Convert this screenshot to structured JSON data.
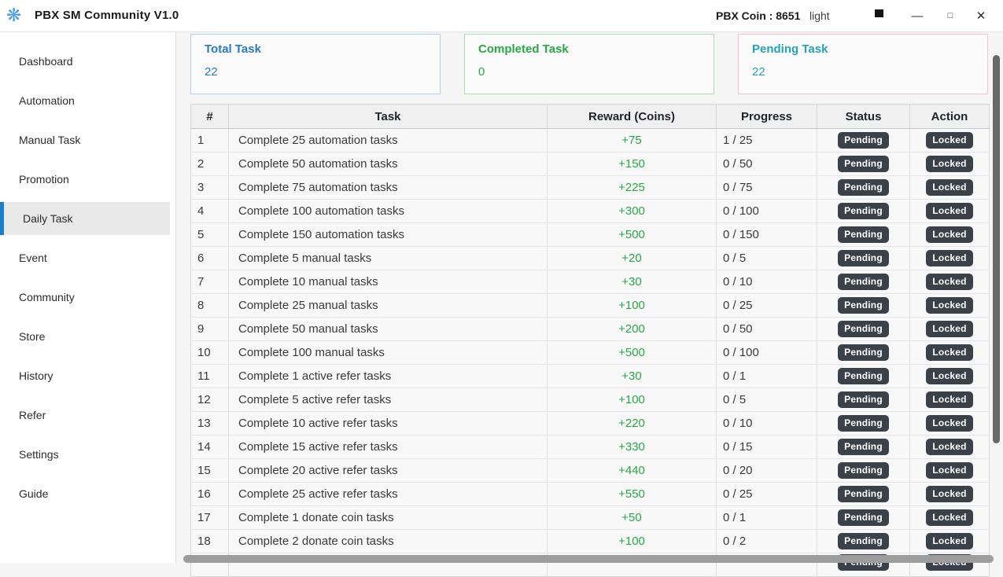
{
  "titlebar": {
    "app_title": "PBX SM Community V1.0",
    "coin_label": "PBX Coin : 8651",
    "theme_label": "light",
    "logo_glyph": "❋",
    "minimize_glyph": "—",
    "maximize_glyph": "□",
    "close_glyph": "✕"
  },
  "sidebar": {
    "items": [
      {
        "label": "Dashboard",
        "active": false
      },
      {
        "label": "Automation",
        "active": false
      },
      {
        "label": "Manual Task",
        "active": false
      },
      {
        "label": "Promotion",
        "active": false
      },
      {
        "label": "Daily Task",
        "active": true
      },
      {
        "label": "Event",
        "active": false
      },
      {
        "label": "Community",
        "active": false
      },
      {
        "label": "Store",
        "active": false
      },
      {
        "label": "History",
        "active": false
      },
      {
        "label": "Refer",
        "active": false
      },
      {
        "label": "Settings",
        "active": false
      },
      {
        "label": "Guide",
        "active": false
      }
    ],
    "active_bar_color": "#1780d0"
  },
  "cards": [
    {
      "title": "Total Task",
      "value": "22",
      "text_color": "#2879c8",
      "border_color": "#b2d0ec"
    },
    {
      "title": "Completed Task",
      "value": "0",
      "text_color": "#28a745",
      "border_color": "#aedcb2"
    },
    {
      "title": "Pending Task",
      "value": "22",
      "text_color": "#22a2b8",
      "border_color": "#f3c3cc"
    }
  ],
  "table": {
    "columns": [
      "#",
      "Task",
      "Reward (Coins)",
      "Progress",
      "Status",
      "Action"
    ],
    "reward_color": "#28a745",
    "badge_bg": "#3a4149",
    "rows": [
      {
        "num": "1",
        "task": "Complete 25 automation tasks",
        "reward": "+75",
        "progress": "1 / 25",
        "status": "Pending",
        "action": "Locked"
      },
      {
        "num": "2",
        "task": "Complete 50 automation tasks",
        "reward": "+150",
        "progress": "0 / 50",
        "status": "Pending",
        "action": "Locked"
      },
      {
        "num": "3",
        "task": "Complete 75 automation tasks",
        "reward": "+225",
        "progress": "0 / 75",
        "status": "Pending",
        "action": "Locked"
      },
      {
        "num": "4",
        "task": "Complete 100 automation tasks",
        "reward": "+300",
        "progress": "0 / 100",
        "status": "Pending",
        "action": "Locked"
      },
      {
        "num": "5",
        "task": "Complete 150 automation tasks",
        "reward": "+500",
        "progress": "0 / 150",
        "status": "Pending",
        "action": "Locked"
      },
      {
        "num": "6",
        "task": "Complete 5 manual tasks",
        "reward": "+20",
        "progress": "0 / 5",
        "status": "Pending",
        "action": "Locked"
      },
      {
        "num": "7",
        "task": "Complete 10 manual tasks",
        "reward": "+30",
        "progress": "0 / 10",
        "status": "Pending",
        "action": "Locked"
      },
      {
        "num": "8",
        "task": "Complete 25 manual tasks",
        "reward": "+100",
        "progress": "0 / 25",
        "status": "Pending",
        "action": "Locked"
      },
      {
        "num": "9",
        "task": "Complete 50 manual tasks",
        "reward": "+200",
        "progress": "0 / 50",
        "status": "Pending",
        "action": "Locked"
      },
      {
        "num": "10",
        "task": "Complete 100 manual tasks",
        "reward": "+500",
        "progress": "0 / 100",
        "status": "Pending",
        "action": "Locked"
      },
      {
        "num": "11",
        "task": "Complete 1 active refer tasks",
        "reward": "+30",
        "progress": "0 / 1",
        "status": "Pending",
        "action": "Locked"
      },
      {
        "num": "12",
        "task": "Complete 5 active refer tasks",
        "reward": "+100",
        "progress": "0 / 5",
        "status": "Pending",
        "action": "Locked"
      },
      {
        "num": "13",
        "task": "Complete 10 active refer tasks",
        "reward": "+220",
        "progress": "0 / 10",
        "status": "Pending",
        "action": "Locked"
      },
      {
        "num": "14",
        "task": "Complete 15 active refer tasks",
        "reward": "+330",
        "progress": "0 / 15",
        "status": "Pending",
        "action": "Locked"
      },
      {
        "num": "15",
        "task": "Complete 20 active refer tasks",
        "reward": "+440",
        "progress": "0 / 20",
        "status": "Pending",
        "action": "Locked"
      },
      {
        "num": "16",
        "task": "Complete 25 active refer tasks",
        "reward": "+550",
        "progress": "0 / 25",
        "status": "Pending",
        "action": "Locked"
      },
      {
        "num": "17",
        "task": "Complete 1 donate coin tasks",
        "reward": "+50",
        "progress": "0 / 1",
        "status": "Pending",
        "action": "Locked"
      },
      {
        "num": "18",
        "task": "Complete 2 donate coin tasks",
        "reward": "+100",
        "progress": "0 / 2",
        "status": "Pending",
        "action": "Locked"
      }
    ],
    "partial_row": {
      "status": "Pending",
      "action": "Locked"
    }
  }
}
